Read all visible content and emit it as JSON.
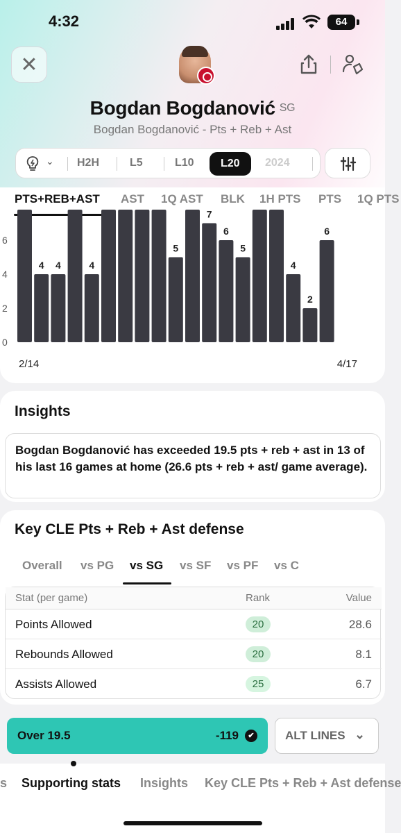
{
  "status_bar": {
    "time": "4:32",
    "battery": "64"
  },
  "header": {
    "player_name": "Bogdan Bogdanović",
    "position": "SG",
    "subtitle": "Bogdan Bogdanović - Pts + Reb + Ast"
  },
  "filters": {
    "options": [
      "H2H",
      "L5",
      "L10",
      "L20",
      "2024"
    ],
    "active": "L20"
  },
  "stat_tabs": [
    "PTS+REB+AST",
    "AST",
    "1Q AST",
    "BLK",
    "1H PTS",
    "PTS",
    "1Q PTS"
  ],
  "chart_data": {
    "type": "bar",
    "x_start_label": "2/14",
    "x_end_label": "4/17",
    "ytick_labels": [
      "0",
      "2",
      "4",
      "6"
    ],
    "values": [
      null,
      4,
      4,
      null,
      4,
      null,
      null,
      null,
      null,
      5,
      null,
      7,
      6,
      5,
      null,
      null,
      4,
      2,
      6
    ],
    "data_labels": [
      "",
      "4",
      "4",
      "",
      "4",
      "",
      "",
      "",
      "",
      "5",
      "",
      "7",
      "6",
      "5",
      "",
      "",
      "4",
      "2",
      "6"
    ],
    "ylim": [
      0,
      7
    ]
  },
  "insights": {
    "title": "Insights",
    "text": "Bogdan Bogdanović has exceeded 19.5 pts + reb + ast in 13 of his last 16 games at home (26.6 pts + reb + ast/ game average)."
  },
  "defense": {
    "title": "Key CLE Pts + Reb + Ast defense",
    "position_tabs": [
      "Overall",
      "vs PG",
      "vs SG",
      "vs SF",
      "vs PF",
      "vs C"
    ],
    "active_tab": "vs SG",
    "headers": {
      "stat": "Stat (per game)",
      "rank": "Rank",
      "value": "Value"
    },
    "rows": [
      {
        "stat": "Points Allowed",
        "rank": "20",
        "value": "28.6",
        "badge_color": "#cfeed9"
      },
      {
        "stat": "Rebounds Allowed",
        "rank": "20",
        "value": "8.1",
        "badge_color": "#cfeed9"
      },
      {
        "stat": "Assists Allowed",
        "rank": "25",
        "value": "6.7",
        "badge_color": "#d6f5e0"
      }
    ]
  },
  "bet": {
    "over_label": "Over 19.5",
    "odds": "-119",
    "alt_lines": "ALT LINES",
    "accent": "#2ec6b4"
  },
  "section_tabs": [
    "s",
    "Supporting stats",
    "Insights",
    "Key CLE Pts + Reb + Ast defense"
  ],
  "icons": {
    "close": "close-icon",
    "share": "share-icon",
    "compare": "compare-players-icon",
    "bulb": "lightbulb-icon",
    "settings": "sliders-icon"
  }
}
